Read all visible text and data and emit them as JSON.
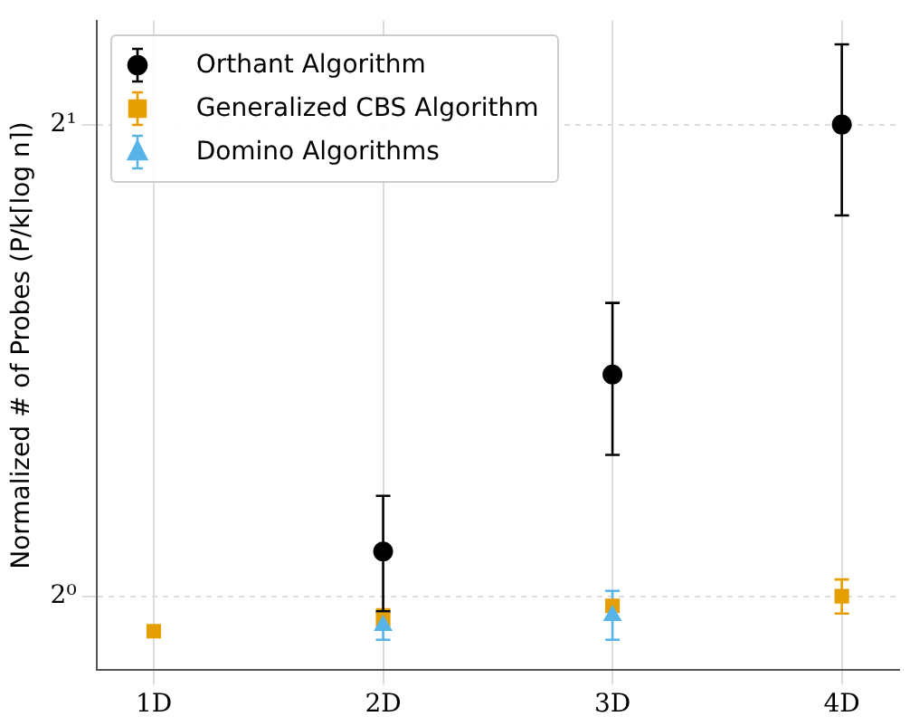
{
  "chart_data": {
    "type": "scatter",
    "ylabel": "Normalized # of Probes (P/k⌈log n⌉)",
    "categories": [
      "1D",
      "2D",
      "3D",
      "4D"
    ],
    "log": true,
    "ylim": [
      0.897,
      2.33
    ],
    "yticks": [
      {
        "value": 1,
        "label": "2⁰"
      },
      {
        "value": 2,
        "label": "2¹"
      }
    ],
    "grid": true,
    "legend": "top left",
    "series": [
      {
        "name": "Orthant Algorithm",
        "color": "#000000",
        "marker": "circle",
        "values": [
          null,
          1.068,
          1.385,
          2.0
        ],
        "errors": [
          null,
          [
            0.978,
            1.159
          ],
          [
            1.231,
            1.539
          ],
          [
            1.75,
            2.25
          ]
        ]
      },
      {
        "name": "Generalized CBS Algorithm",
        "color": "#e69f00",
        "marker": "square",
        "values": [
          0.95,
          0.966,
          0.986,
          1.0
        ],
        "errors": [
          null,
          [
            0.952,
            0.981
          ],
          null,
          [
            0.975,
            1.025
          ]
        ]
      },
      {
        "name": "Domino Algorithms",
        "color": "#56b4e9",
        "marker": "triangle",
        "values": [
          null,
          0.958,
          0.972,
          null
        ],
        "errors": [
          null,
          [
            0.938,
            0.976
          ],
          [
            0.938,
            1.008
          ],
          null
        ]
      }
    ]
  }
}
